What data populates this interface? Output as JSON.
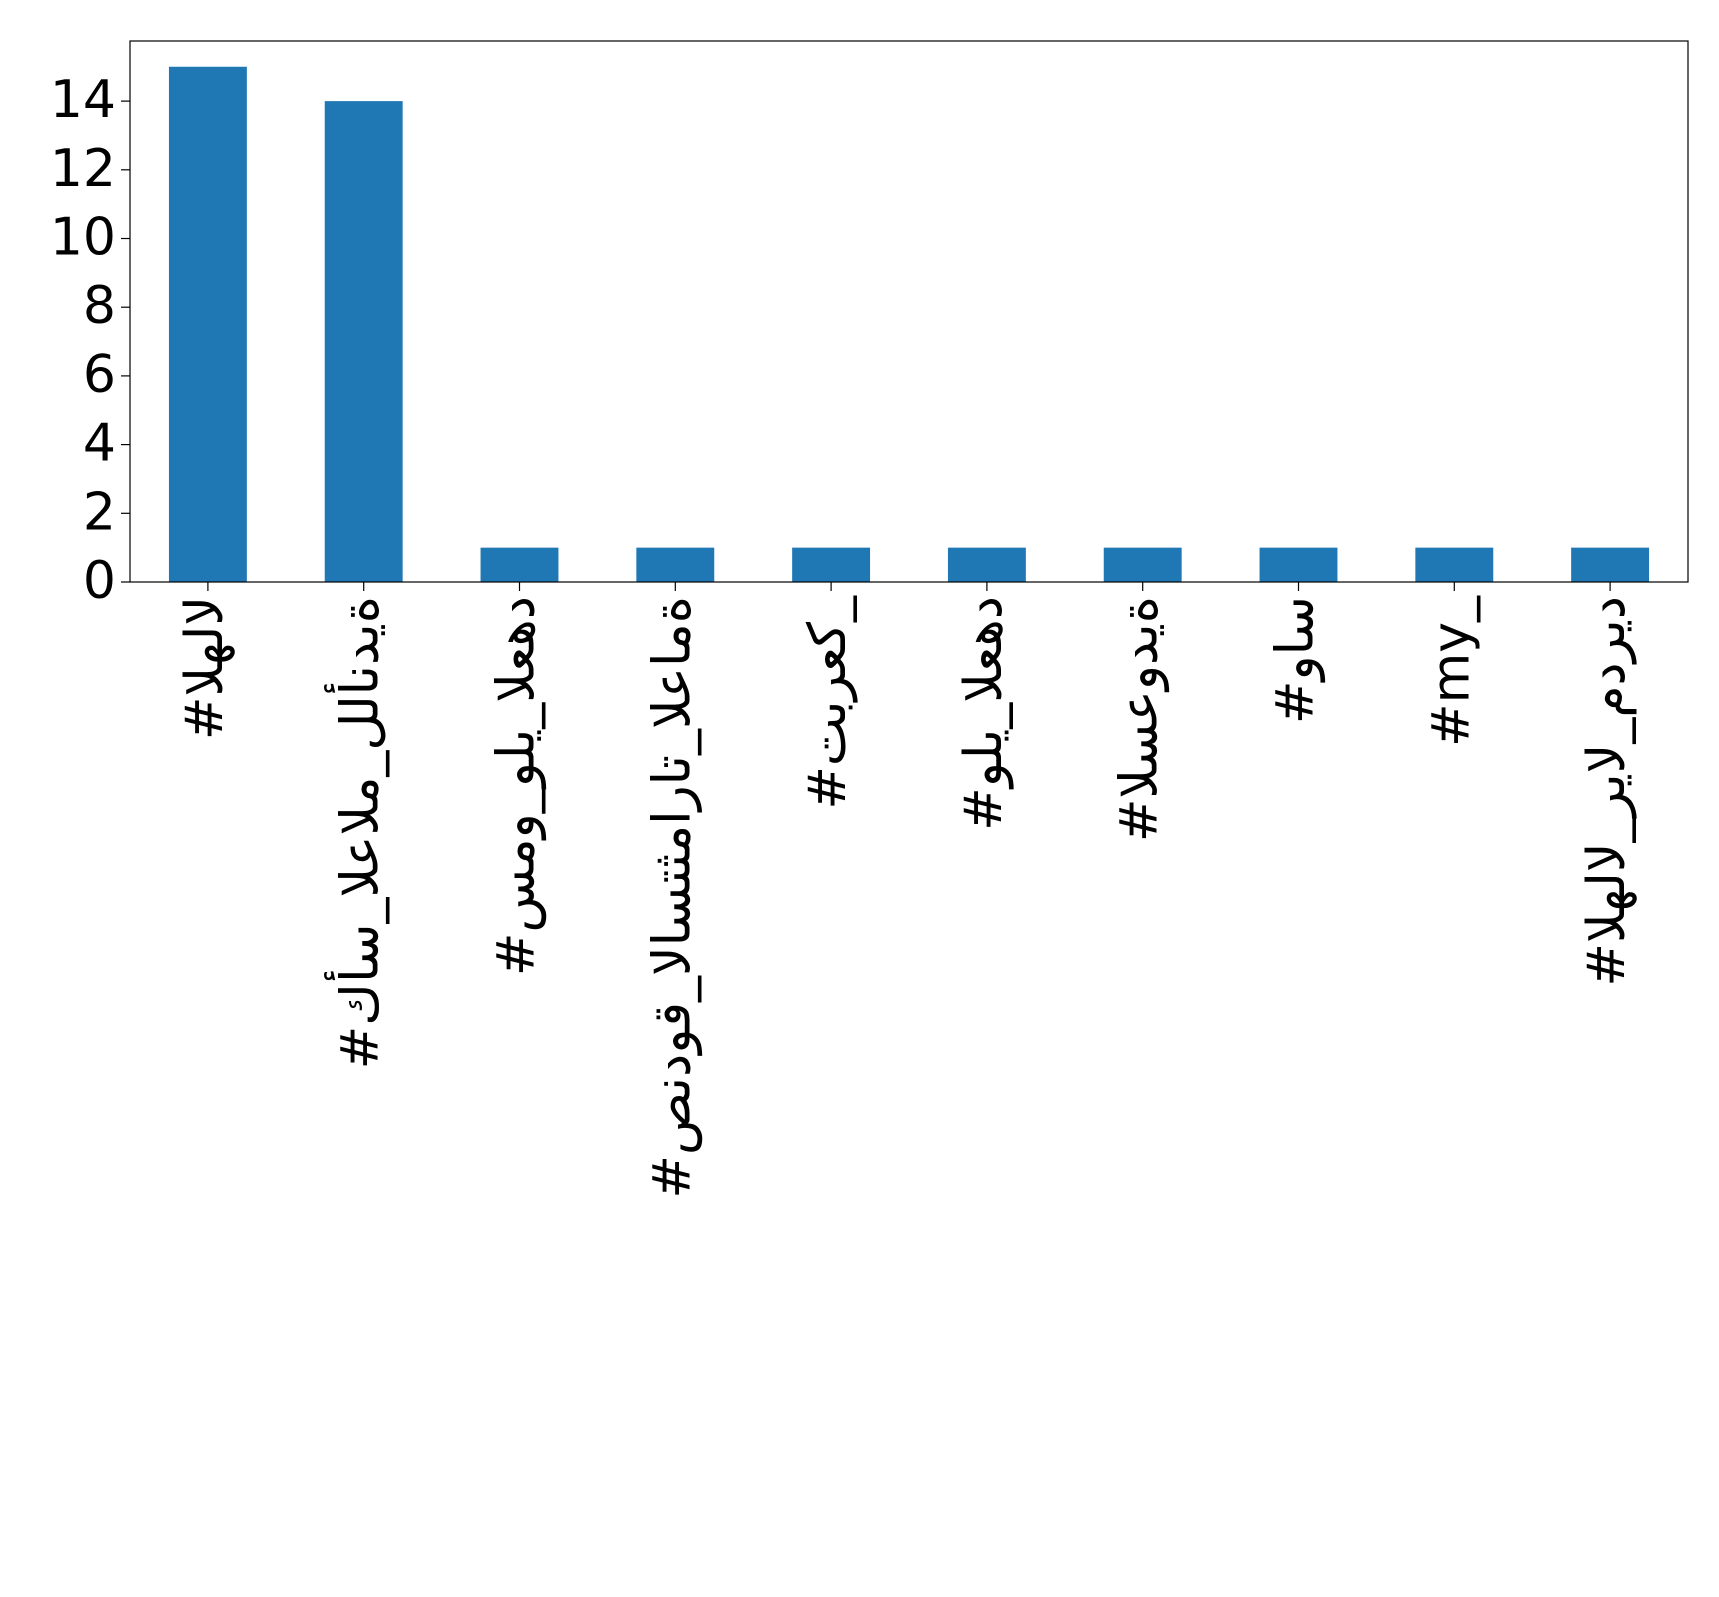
{
  "chart_data": {
    "type": "bar",
    "categories": [
      "#الهلال",
      "#كأس_العالم_للأندية",
      "#سمو_ولي_العهد",
      "#صندوق_الاستثمارات_العامة",
      "#تبرعك_",
      "#ولي_العهد",
      "#السعودية",
      "#واس",
      "#my_",
      "#الهلال_ريال_مدريد"
    ],
    "values": [
      15,
      14,
      1,
      1,
      1,
      1,
      1,
      1,
      1,
      1
    ],
    "color": "#1f77b4",
    "ylim": [
      0,
      15.75
    ],
    "yticks": [
      0,
      2,
      4,
      6,
      8,
      10,
      12,
      14
    ],
    "grid": false
  }
}
